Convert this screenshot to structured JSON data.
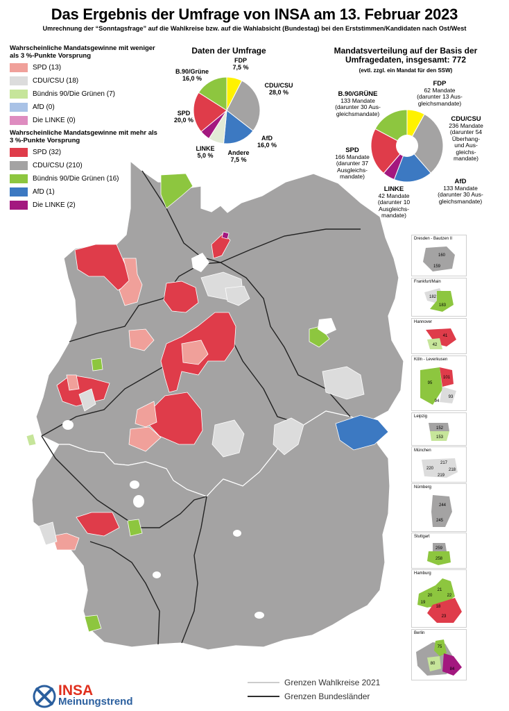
{
  "header": {
    "title": "Das Ergebnis der Umfrage von INSA am 13. Februar 2023",
    "subtitle": "Umrechnung der “Sonntagsfrage” auf die Wahlkreise bzw. auf die Wahlabsicht (Bundestag) bei den Erststimmen/Kandidaten nach Ost/West"
  },
  "legend": {
    "group1_title": "Wahrscheinliche Mandatsgewinne mit weniger als 3 %-Punkte Vorsprung",
    "group1": [
      {
        "label": "SPD (13)",
        "color": "#f0a09a"
      },
      {
        "label": "CDU/CSU (18)",
        "color": "#dcdcdc"
      },
      {
        "label": "Bündnis 90/Die Grünen (7)",
        "color": "#c6e59a"
      },
      {
        "label": "AfD (0)",
        "color": "#a9c2e6"
      },
      {
        "label": "Die LINKE (0)",
        "color": "#de8cc0"
      }
    ],
    "group2_title": "Wahrscheinliche Mandatsgewinne mit mehr als 3 %-Punkte Vorsprung",
    "group2": [
      {
        "label": "SPD (32)",
        "color": "#df3c4a"
      },
      {
        "label": "CDU/CSU (210)",
        "color": "#a4a3a3"
      },
      {
        "label": "Bündnis 90/Die Grünen (16)",
        "color": "#8dc63f"
      },
      {
        "label": "AfD (1)",
        "color": "#3c79c2"
      },
      {
        "label": "Die LINKE (2)",
        "color": "#a3187f"
      }
    ]
  },
  "poll_pie": {
    "title": "Daten der Umfrage",
    "slices": [
      {
        "party": "FDP",
        "value": 7.5,
        "label": "7,5 %",
        "color": "#fff200"
      },
      {
        "party": "CDU/CSU",
        "value": 28.0,
        "label": "28,0 %",
        "color": "#a4a3a3"
      },
      {
        "party": "AfD",
        "value": 16.0,
        "label": "16,0 %",
        "color": "#3c79c2"
      },
      {
        "party": "Andere",
        "value": 7.5,
        "label": "7,5 %",
        "color": "#e2ead6"
      },
      {
        "party": "LINKE",
        "value": 5.0,
        "label": "5,0 %",
        "color": "#a3187f"
      },
      {
        "party": "SPD",
        "value": 20.0,
        "label": "20,0 %",
        "color": "#df3c4a"
      },
      {
        "party": "B.90/Grüne",
        "value": 16.0,
        "label": "16,0 %",
        "color": "#8dc63f"
      }
    ]
  },
  "seats_pie": {
    "title": "Mandatsverteilung auf der Basis der Umfragedaten, insgesamt: 772",
    "note": "(evtl. zzgl. ein Mandat für den SSW)",
    "slices": [
      {
        "party": "FDP",
        "value": 62,
        "text": "62 Mandate (darunter 13 Aus-gleichsmandate)",
        "color": "#fff200"
      },
      {
        "party": "CDU/CSU",
        "value": 236,
        "text": "236 Mandate (darunter 54 Überhang- und Aus-gleichs-mandate)",
        "color": "#a4a3a3"
      },
      {
        "party": "AfD",
        "value": 133,
        "text": "133 Mandate (darunter 30 Aus-gleichsmandate)",
        "color": "#3c79c2"
      },
      {
        "party": "LINKE",
        "value": 42,
        "text": "42 Mandate (darunter 10 Ausgleichs-mandate)",
        "color": "#a3187f"
      },
      {
        "party": "SPD",
        "value": 166,
        "text": "166 Mandate (darunter 37 Ausgleichs-mandate)",
        "color": "#df3c4a"
      },
      {
        "party": "B.90/GRÜNE",
        "value": 133,
        "text": "133 Mandate (darunter 30 Aus-gleichsmandate)",
        "color": "#8dc63f"
      }
    ]
  },
  "insets": [
    {
      "name": "Dresden - Bautzen II",
      "numbers": [
        "160",
        "159"
      ]
    },
    {
      "name": "Frankfurt/Main",
      "numbers": [
        "182",
        "183"
      ]
    },
    {
      "name": "Hannover",
      "numbers": [
        "41",
        "42"
      ]
    },
    {
      "name": "Köln - Leverkusen",
      "numbers": [
        "101",
        "95",
        "94",
        "93"
      ]
    },
    {
      "name": "Leipzig",
      "numbers": [
        "152",
        "153"
      ]
    },
    {
      "name": "München",
      "numbers": [
        "217",
        "220",
        "218",
        "219"
      ]
    },
    {
      "name": "Nürnberg",
      "numbers": [
        "244",
        "245"
      ]
    },
    {
      "name": "Stuttgart",
      "numbers": [
        "259",
        "258"
      ]
    },
    {
      "name": "Hamburg",
      "numbers": [
        "21",
        "20",
        "22",
        "19",
        "18",
        "23"
      ]
    },
    {
      "name": "Berlin",
      "numbers": [
        "75",
        "80",
        "84"
      ]
    }
  ],
  "map_legend": {
    "wahlkreise": "Grenzen Wahlkreise 2021",
    "bundeslaender": "Grenzen Bundesländer"
  },
  "logo": {
    "brand": "INSA",
    "sub": "Meinungstrend"
  }
}
